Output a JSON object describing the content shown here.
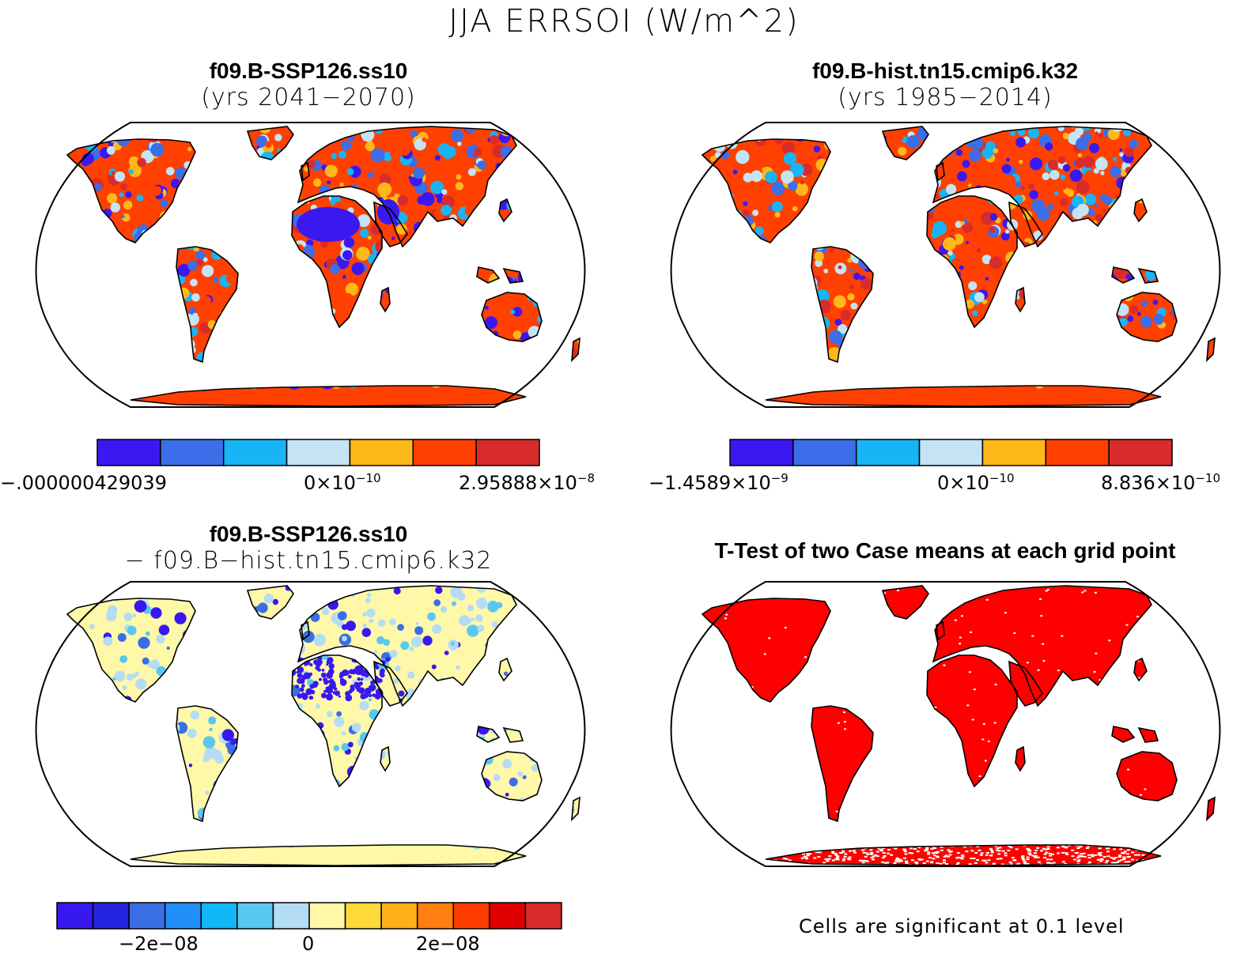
{
  "title": "JJA ERRSOI (W/m^2)",
  "panels": [
    {
      "title": "f09.B-SSP126.ss10",
      "subtitle": "(yrs 2041−2070)",
      "field": "spotted",
      "colorbar": {
        "colors": [
          "#3b18f0",
          "#3b6ee8",
          "#18b4f5",
          "#c4e4f5",
          "#ffb81a",
          "#ff4000",
          "#d82c2c"
        ],
        "labels": [
          {
            "base": "−.000000429039",
            "exp": ""
          },
          {
            "base": "0×10",
            "exp": "−10"
          },
          {
            "base": "2.95888×10",
            "exp": "−8"
          }
        ]
      }
    },
    {
      "title": "f09.B-hist.tn15.cmip6.k32",
      "subtitle": "(yrs 1985−2014)",
      "field": "spotted",
      "colorbar": {
        "colors": [
          "#3b18f0",
          "#3b6ee8",
          "#18b4f5",
          "#c4e4f5",
          "#ffb81a",
          "#ff4000",
          "#d82c2c"
        ],
        "labels": [
          {
            "base": "−1.4589×10",
            "exp": "−9"
          },
          {
            "base": "0×10",
            "exp": "−10"
          },
          {
            "base": "8.836×10",
            "exp": "−10"
          }
        ]
      }
    },
    {
      "title": "f09.B-SSP126.ss10",
      "subtitle": "− f09.B−hist.tn15.cmip6.k32",
      "field": "difference",
      "colorbar": {
        "colors": [
          "#3818f0",
          "#2424e0",
          "#3a6ee4",
          "#2090f8",
          "#10b8f8",
          "#58c8f0",
          "#b4dcf4",
          "#fff8a8",
          "#ffd83a",
          "#ffb018",
          "#ff8010",
          "#ff3c00",
          "#e00000",
          "#d82c2c"
        ],
        "labels": [
          {
            "base": "−2e−08",
            "exp": ""
          },
          {
            "base": "0",
            "exp": ""
          },
          {
            "base": "2e−08",
            "exp": ""
          }
        ]
      }
    },
    {
      "title": "T-Test of two Case means at each grid point",
      "subtitle": "",
      "field": "significance",
      "footnote": "Cells are significant at 0.1 level"
    }
  ],
  "colors": {
    "land_significant": "#ff0000",
    "outline": "#000000",
    "background": "#ffffff"
  }
}
